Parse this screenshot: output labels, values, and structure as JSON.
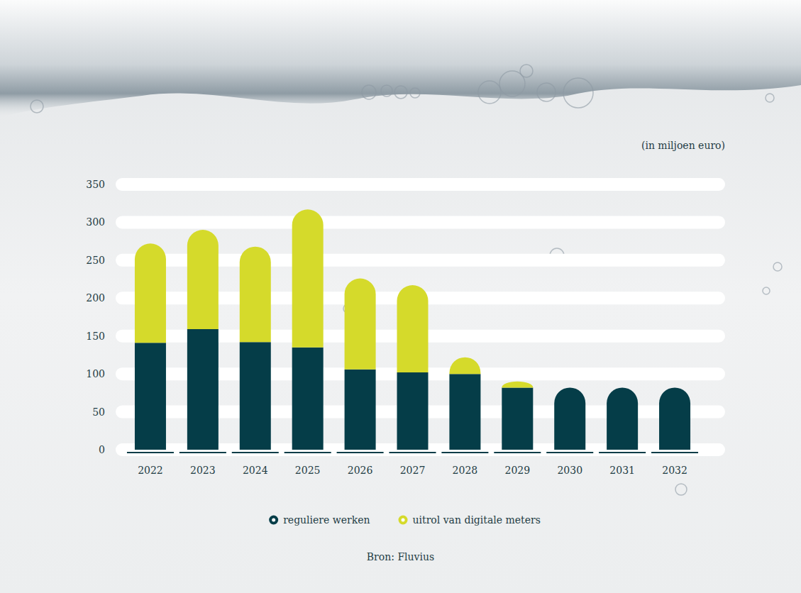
{
  "chart_data": {
    "type": "bar",
    "stacked": true,
    "y_label": "(in miljoen euro)",
    "source": "Bron: Fluvius",
    "categories": [
      "2022",
      "2023",
      "2024",
      "2025",
      "2026",
      "2027",
      "2028",
      "2029",
      "2030",
      "2031",
      "2032"
    ],
    "series": [
      {
        "name": "reguliere werken",
        "color": "#053d48",
        "values": [
          141,
          159,
          142,
          135,
          106,
          102,
          100,
          82,
          82,
          82,
          82
        ]
      },
      {
        "name": "uitrol van digitale meters",
        "color": "#d5da2b",
        "values": [
          131,
          131,
          126,
          182,
          120,
          115,
          22,
          8,
          0,
          0,
          0
        ]
      }
    ],
    "ylim": [
      0,
      350
    ],
    "yticks": [
      0,
      50,
      100,
      150,
      200,
      250,
      300,
      350
    ],
    "grid": true,
    "legend": "bottom"
  }
}
